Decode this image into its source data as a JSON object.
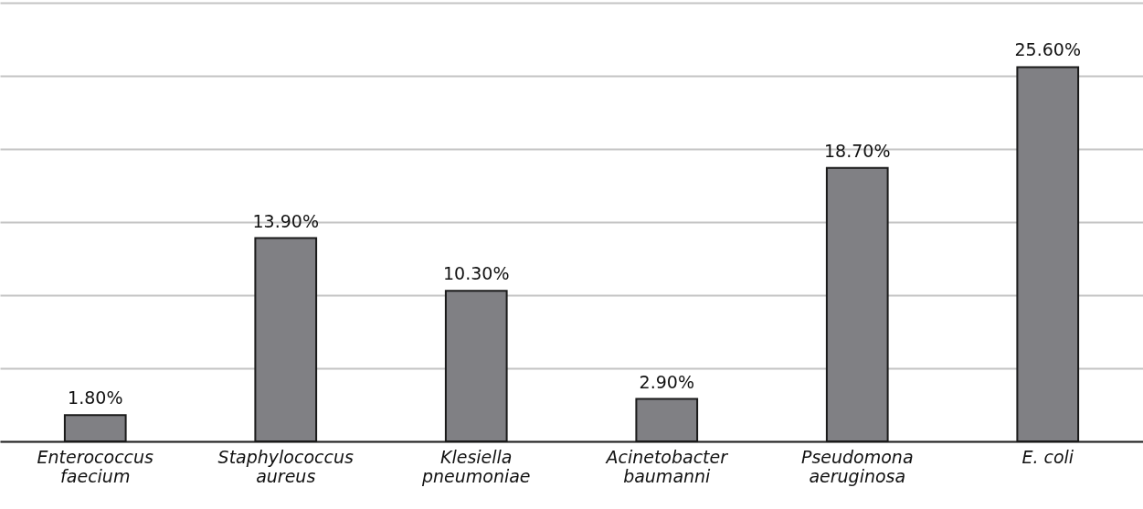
{
  "chart_data": {
    "type": "bar",
    "categories": [
      "Enterococcus\nfaecium",
      "Staphylococcus\naureus",
      "Klesiella\npneumoniae",
      "Acinetobacter\nbaumanni",
      "Pseudomona\naeruginosa",
      "E. coli"
    ],
    "values": [
      1.8,
      13.9,
      10.3,
      2.9,
      18.7,
      25.6
    ],
    "value_labels": [
      "1.80%",
      "13.90%",
      "10.30%",
      "2.90%",
      "18.70%",
      "25.60%"
    ],
    "color": "#808084",
    "ylim": [
      0,
      30
    ],
    "yticks": [
      {
        "value": 0,
        "label": null
      },
      {
        "value": 5,
        "label": null
      },
      {
        "value": 10,
        "label": null
      },
      {
        "value": 15,
        "label": null
      },
      {
        "value": 20,
        "label": null
      },
      {
        "value": 25,
        "label": null
      },
      {
        "value": 30,
        "label": null
      }
    ],
    "grid": "y",
    "tick_labels": "x"
  }
}
